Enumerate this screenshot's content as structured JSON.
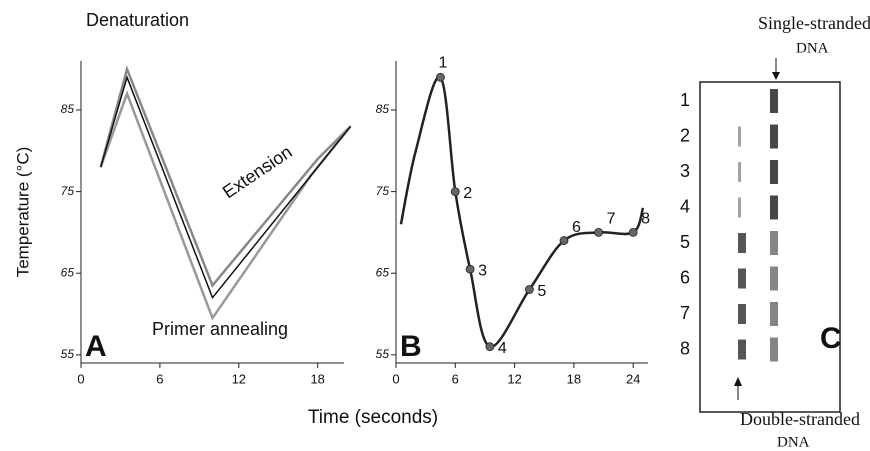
{
  "chart_data": [
    {
      "type": "line",
      "panel": "A",
      "ylabel": "Temperature (°C)",
      "xlim": [
        0,
        20
      ],
      "ylim": [
        54,
        91
      ],
      "xticks": [
        0,
        6,
        12,
        18
      ],
      "yticks": [
        55,
        65,
        75,
        85
      ],
      "annotations": [
        "Denaturation",
        "Extension",
        "Primer annealing"
      ],
      "series": [
        {
          "color": "#888888",
          "x": [
            1.5,
            3.5,
            10,
            18,
            20.5
          ],
          "values": [
            78,
            90,
            63.5,
            79,
            83
          ]
        },
        {
          "color": "#999999",
          "x": [
            1.5,
            3.5,
            10,
            17.5,
            20.5
          ],
          "values": [
            78,
            87,
            59.5,
            77,
            83
          ]
        },
        {
          "color": "#111111",
          "x": [
            1.5,
            3.5,
            10,
            18,
            20.5
          ],
          "values": [
            78,
            89,
            62,
            78,
            83
          ]
        }
      ]
    },
    {
      "type": "line",
      "panel": "B",
      "xlim": [
        0,
        25.5
      ],
      "ylim": [
        54,
        91
      ],
      "xticks": [
        0,
        6,
        12,
        18,
        24
      ],
      "yticks": [
        55,
        65,
        75,
        85
      ],
      "series": [
        {
          "color": "#222222",
          "x": [
            0.5,
            2,
            4.5,
            6,
            7.5,
            9.5,
            13.5,
            17,
            20.5,
            24,
            25
          ],
          "values": [
            71,
            80,
            89,
            75,
            65.5,
            56,
            63,
            69,
            70,
            70,
            73
          ]
        },
        {
          "color": "#666666",
          "markers": true,
          "labels": [
            "1",
            "2",
            "3",
            "4",
            "5",
            "6",
            "7",
            "8"
          ],
          "x": [
            4.5,
            6,
            7.5,
            9.5,
            13.5,
            17,
            20.5,
            24
          ],
          "values": [
            89,
            75,
            65.5,
            56,
            63,
            69,
            70,
            70
          ]
        }
      ]
    }
  ],
  "xlabel": "Time (seconds)",
  "gel": {
    "panel": "C",
    "top_label": [
      "Single-stranded",
      "DNA"
    ],
    "bottom_label": [
      "Double-stranded",
      "DNA"
    ],
    "lanes": [
      "1",
      "2",
      "3",
      "4",
      "5",
      "6",
      "7",
      "8"
    ]
  }
}
